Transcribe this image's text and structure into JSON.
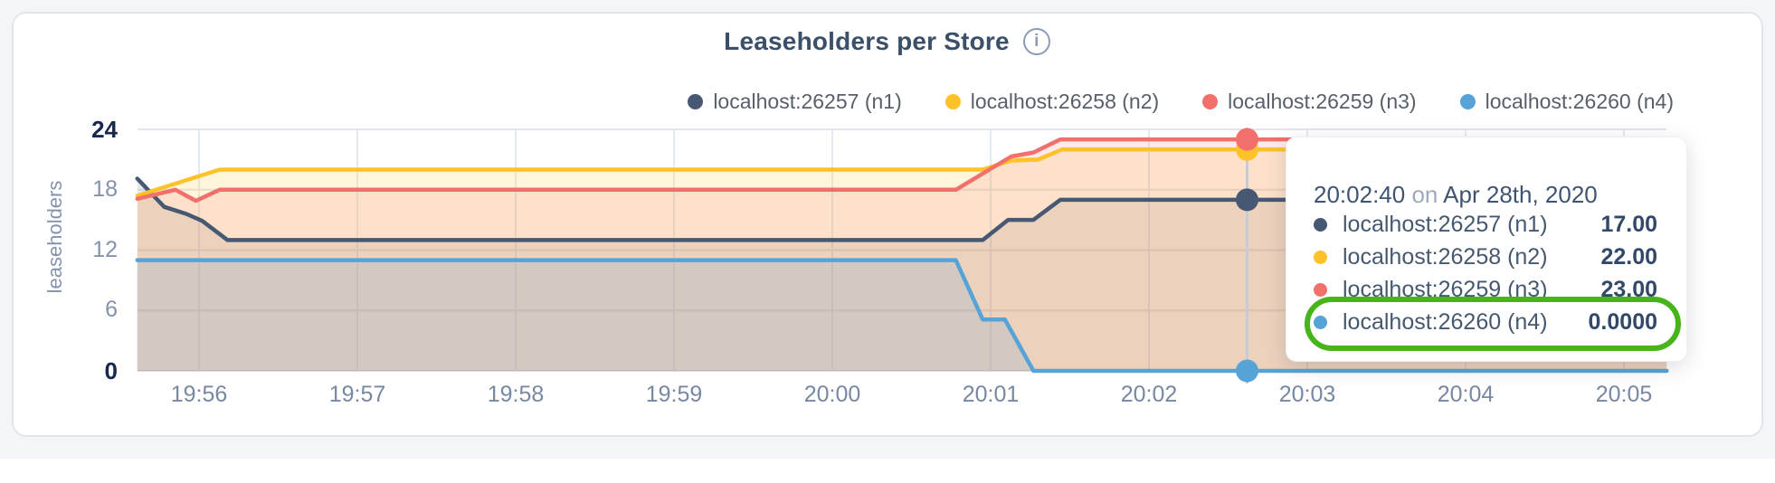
{
  "header": {
    "title": "Leaseholders per Store",
    "info_glyph": "i"
  },
  "legend": {
    "items": [
      {
        "label": "localhost:26257 (n1)",
        "color": "#475872"
      },
      {
        "label": "localhost:26258 (n2)",
        "color": "#fdc12a"
      },
      {
        "label": "localhost:26259 (n3)",
        "color": "#f1706b"
      },
      {
        "label": "localhost:26260 (n4)",
        "color": "#56a3d8"
      }
    ]
  },
  "chart_data": {
    "type": "area",
    "title": "Leaseholders per Store",
    "ylabel": "leaseholders",
    "ylim": [
      0,
      24
    ],
    "y_ticks": [
      0,
      6,
      12,
      18,
      24
    ],
    "x_tick_labels": [
      "19:56",
      "19:57",
      "19:58",
      "19:59",
      "20:00",
      "20:01",
      "20:02",
      "20:03",
      "20:04",
      "20:05"
    ],
    "x_tick_positions": [
      0,
      1,
      2,
      3,
      4,
      5,
      6,
      7,
      8,
      9
    ],
    "x_domain_minutes": [
      -0.39,
      9.27
    ],
    "grid": true,
    "legend_position": "top-right",
    "series": [
      {
        "name": "localhost:26257 (n1)",
        "color": "#475872",
        "points": [
          [
            -0.39,
            19.1
          ],
          [
            -0.22,
            16.3
          ],
          [
            -0.08,
            15.6
          ],
          [
            0.02,
            14.9
          ],
          [
            0.18,
            13
          ],
          [
            4.95,
            13
          ],
          [
            5.11,
            15
          ],
          [
            5.27,
            15
          ],
          [
            5.44,
            17
          ],
          [
            9.27,
            17
          ]
        ]
      },
      {
        "name": "localhost:26258 (n2)",
        "color": "#fdc12a",
        "points": [
          [
            -0.39,
            17.4
          ],
          [
            0.13,
            20
          ],
          [
            4.95,
            20
          ],
          [
            5.13,
            20.9
          ],
          [
            5.3,
            21
          ],
          [
            5.45,
            22
          ],
          [
            9.27,
            22
          ]
        ]
      },
      {
        "name": "localhost:26259 (n3)",
        "color": "#f1706b",
        "points": [
          [
            -0.39,
            17.1
          ],
          [
            -0.15,
            18
          ],
          [
            -0.02,
            16.9
          ],
          [
            0.13,
            18
          ],
          [
            4.78,
            18
          ],
          [
            5.13,
            21.3
          ],
          [
            5.27,
            21.7
          ],
          [
            5.44,
            23
          ],
          [
            9.27,
            23
          ]
        ]
      },
      {
        "name": "localhost:26260 (n4)",
        "color": "#56a3d8",
        "points": [
          [
            -0.39,
            11
          ],
          [
            4.78,
            11
          ],
          [
            4.95,
            5.1
          ],
          [
            5.09,
            5.1
          ],
          [
            5.27,
            0
          ],
          [
            9.27,
            0
          ]
        ]
      }
    ],
    "hover": {
      "x": 6.62,
      "time": "20:02:40",
      "values": [
        17,
        22,
        23,
        0
      ]
    }
  },
  "tooltip": {
    "time": "20:02:40",
    "on_word": "on",
    "date": "Apr 28th, 2020",
    "rows": [
      {
        "label": "localhost:26257 (n1)",
        "value": "17.00",
        "color": "#475872",
        "highlighted": false
      },
      {
        "label": "localhost:26258 (n2)",
        "value": "22.00",
        "color": "#fdc12a",
        "highlighted": false
      },
      {
        "label": "localhost:26259 (n3)",
        "value": "23.00",
        "color": "#f1706b",
        "highlighted": false
      },
      {
        "label": "localhost:26260 (n4)",
        "value": "0.0000",
        "color": "#56a3d8",
        "highlighted": true
      }
    ]
  },
  "colors": {
    "page_background": "#f3f5f9",
    "panel_background": "#ffffff",
    "grid_horizontal": "#e2e5eb",
    "grid_vertical": "#e5eaf2",
    "baseline": "#d7dce4",
    "hover_line": "#c7cdd8",
    "annotation_ring": "#47b41c"
  }
}
